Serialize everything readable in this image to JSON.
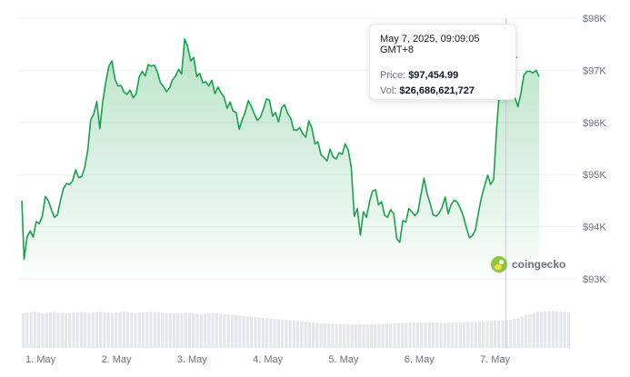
{
  "chart_data": {
    "type": "area",
    "title": "",
    "xlabel": "",
    "ylabel": "",
    "y_ticks": [
      "$98K",
      "$97K",
      "$96K",
      "$95K",
      "$94K",
      "$93K"
    ],
    "y_tick_values": [
      98000,
      97000,
      96000,
      95000,
      94000,
      93000
    ],
    "ylim": [
      93000,
      98000
    ],
    "x_ticks": [
      "1. May",
      "2. May",
      "3. May",
      "4. May",
      "5. May",
      "6. May",
      "7. May"
    ],
    "x_tick_values": [
      0,
      1,
      2,
      3,
      4,
      5,
      6
    ],
    "xlim": [
      -0.05,
      7.2
    ],
    "grid": true,
    "legend": "none",
    "colors": {
      "line": "#16a34a",
      "fill": "#16a34a",
      "volume": "#e5e7eb",
      "crosshair": "#c8ccd2"
    },
    "series": [
      {
        "values": [
          [
            -0.05,
            94500
          ],
          [
            -0.02,
            93380
          ],
          [
            0.02,
            93800
          ],
          [
            0.06,
            93920
          ],
          [
            0.1,
            93800
          ],
          [
            0.14,
            94100
          ],
          [
            0.18,
            94060
          ],
          [
            0.22,
            94200
          ],
          [
            0.26,
            94580
          ],
          [
            0.3,
            94500
          ],
          [
            0.34,
            94330
          ],
          [
            0.38,
            94180
          ],
          [
            0.42,
            94230
          ],
          [
            0.46,
            94500
          ],
          [
            0.5,
            94730
          ],
          [
            0.54,
            94830
          ],
          [
            0.58,
            94810
          ],
          [
            0.62,
            94880
          ],
          [
            0.66,
            95090
          ],
          [
            0.7,
            94940
          ],
          [
            0.74,
            94960
          ],
          [
            0.78,
            95130
          ],
          [
            0.82,
            95460
          ],
          [
            0.86,
            96050
          ],
          [
            0.9,
            96160
          ],
          [
            0.94,
            96400
          ],
          [
            0.98,
            95880
          ],
          [
            1.02,
            96410
          ],
          [
            1.06,
            96790
          ],
          [
            1.1,
            97080
          ],
          [
            1.14,
            97180
          ],
          [
            1.18,
            96830
          ],
          [
            1.22,
            96700
          ],
          [
            1.26,
            96710
          ],
          [
            1.3,
            96580
          ],
          [
            1.34,
            96540
          ],
          [
            1.38,
            96620
          ],
          [
            1.42,
            96470
          ],
          [
            1.46,
            96550
          ],
          [
            1.5,
            96870
          ],
          [
            1.54,
            96980
          ],
          [
            1.58,
            96890
          ],
          [
            1.62,
            97110
          ],
          [
            1.66,
            97080
          ],
          [
            1.7,
            97100
          ],
          [
            1.74,
            96970
          ],
          [
            1.78,
            96760
          ],
          [
            1.82,
            96690
          ],
          [
            1.86,
            96590
          ],
          [
            1.9,
            96660
          ],
          [
            1.94,
            96820
          ],
          [
            1.98,
            96890
          ],
          [
            2.02,
            97020
          ],
          [
            2.06,
            96930
          ],
          [
            2.1,
            97600
          ],
          [
            2.14,
            97460
          ],
          [
            2.18,
            97180
          ],
          [
            2.22,
            97250
          ],
          [
            2.26,
            96880
          ],
          [
            2.3,
            96940
          ],
          [
            2.34,
            96760
          ],
          [
            2.38,
            96780
          ],
          [
            2.42,
            96700
          ],
          [
            2.46,
            96810
          ],
          [
            2.5,
            96550
          ],
          [
            2.54,
            96680
          ],
          [
            2.58,
            96570
          ],
          [
            2.62,
            96490
          ],
          [
            2.66,
            96270
          ],
          [
            2.7,
            96390
          ],
          [
            2.74,
            96220
          ],
          [
            2.78,
            96190
          ],
          [
            2.82,
            95870
          ],
          [
            2.86,
            96050
          ],
          [
            2.9,
            96200
          ],
          [
            2.94,
            96420
          ],
          [
            2.98,
            96310
          ],
          [
            3.02,
            96160
          ],
          [
            3.06,
            96040
          ],
          [
            3.1,
            96100
          ],
          [
            3.14,
            96260
          ],
          [
            3.18,
            96450
          ],
          [
            3.22,
            96430
          ],
          [
            3.26,
            96120
          ],
          [
            3.3,
            96190
          ],
          [
            3.34,
            96010
          ],
          [
            3.38,
            96280
          ],
          [
            3.42,
            96340
          ],
          [
            3.46,
            96170
          ],
          [
            3.5,
            96080
          ],
          [
            3.54,
            95860
          ],
          [
            3.58,
            95850
          ],
          [
            3.62,
            95900
          ],
          [
            3.66,
            95780
          ],
          [
            3.7,
            95720
          ],
          [
            3.74,
            96030
          ],
          [
            3.78,
            95890
          ],
          [
            3.82,
            95590
          ],
          [
            3.86,
            95630
          ],
          [
            3.9,
            95380
          ],
          [
            3.94,
            95330
          ],
          [
            3.98,
            95260
          ],
          [
            4.02,
            95490
          ],
          [
            4.06,
            95340
          ],
          [
            4.1,
            95300
          ],
          [
            4.14,
            95420
          ],
          [
            4.18,
            95390
          ],
          [
            4.22,
            95590
          ],
          [
            4.26,
            95470
          ],
          [
            4.3,
            95140
          ],
          [
            4.34,
            94200
          ],
          [
            4.38,
            94350
          ],
          [
            4.42,
            93840
          ],
          [
            4.46,
            94290
          ],
          [
            4.5,
            94180
          ],
          [
            4.54,
            94470
          ],
          [
            4.58,
            94680
          ],
          [
            4.62,
            94710
          ],
          [
            4.66,
            94420
          ],
          [
            4.7,
            94480
          ],
          [
            4.74,
            94220
          ],
          [
            4.78,
            94180
          ],
          [
            4.82,
            94330
          ],
          [
            4.86,
            94250
          ],
          [
            4.9,
            93770
          ],
          [
            4.94,
            93700
          ],
          [
            4.98,
            94120
          ],
          [
            5.02,
            94090
          ],
          [
            5.06,
            94350
          ],
          [
            5.1,
            94290
          ],
          [
            5.14,
            94210
          ],
          [
            5.18,
            94280
          ],
          [
            5.22,
            94610
          ],
          [
            5.26,
            94930
          ],
          [
            5.3,
            94640
          ],
          [
            5.34,
            94460
          ],
          [
            5.38,
            94230
          ],
          [
            5.42,
            94200
          ],
          [
            5.46,
            94260
          ],
          [
            5.5,
            94380
          ],
          [
            5.54,
            94570
          ],
          [
            5.58,
            94250
          ],
          [
            5.62,
            94430
          ],
          [
            5.66,
            94510
          ],
          [
            5.7,
            94470
          ],
          [
            5.74,
            94350
          ],
          [
            5.78,
            94200
          ],
          [
            5.82,
            93980
          ],
          [
            5.86,
            93790
          ],
          [
            5.9,
            93830
          ],
          [
            5.94,
            93940
          ],
          [
            5.98,
            94280
          ],
          [
            6.02,
            94570
          ],
          [
            6.06,
            94780
          ],
          [
            6.1,
            94990
          ],
          [
            6.14,
            94810
          ],
          [
            6.18,
            94910
          ],
          [
            6.22,
            95910
          ],
          [
            6.26,
            96670
          ],
          [
            6.3,
            97100
          ],
          [
            6.34,
            97450
          ],
          [
            6.38,
            97010
          ],
          [
            6.42,
            96500
          ],
          [
            6.46,
            96480
          ],
          [
            6.5,
            96300
          ],
          [
            6.54,
            96560
          ],
          [
            6.58,
            96910
          ],
          [
            6.62,
            96980
          ],
          [
            6.66,
            96980
          ],
          [
            6.7,
            96950
          ],
          [
            6.74,
            97000
          ],
          [
            6.78,
            96880
          ]
        ]
      }
    ],
    "volume": [
      0.95,
      0.97,
      0.99,
      1.0,
      0.98,
      0.96,
      0.97,
      0.98,
      0.99,
      0.97,
      0.96,
      0.95,
      0.96,
      0.97,
      0.98,
      0.99,
      0.98,
      0.97,
      0.98,
      0.99,
      1.0,
      0.98,
      0.97,
      0.96,
      0.97,
      0.98,
      0.99,
      0.98,
      0.97,
      0.96,
      0.97,
      0.98,
      0.99,
      1.0,
      0.99,
      0.98,
      0.97,
      0.96,
      0.95,
      0.94,
      0.95,
      0.96,
      0.97,
      0.96,
      0.95,
      0.94,
      0.93,
      0.94,
      0.95,
      0.96,
      0.95,
      0.94,
      0.93,
      0.92,
      0.91,
      0.9,
      0.89,
      0.88,
      0.87,
      0.86,
      0.85,
      0.84,
      0.83,
      0.82,
      0.81,
      0.8,
      0.79,
      0.78,
      0.77,
      0.76,
      0.75,
      0.74,
      0.73,
      0.72,
      0.71,
      0.7,
      0.69,
      0.68,
      0.68,
      0.67,
      0.67,
      0.66,
      0.66,
      0.66,
      0.65,
      0.65,
      0.65,
      0.65,
      0.65,
      0.65,
      0.65,
      0.65,
      0.66,
      0.66,
      0.67,
      0.67,
      0.68,
      0.68,
      0.69,
      0.69,
      0.7,
      0.7,
      0.7,
      0.7,
      0.7,
      0.7,
      0.7,
      0.7,
      0.69,
      0.69,
      0.7,
      0.7,
      0.7,
      0.71,
      0.71,
      0.72,
      0.72,
      0.72,
      0.73,
      0.73,
      0.74,
      0.74,
      0.75,
      0.75,
      0.76,
      0.77,
      0.78,
      0.8,
      0.82,
      0.86,
      0.9,
      0.94,
      0.97,
      0.99,
      1.0,
      1.01,
      1.02,
      1.02,
      1.01,
      1.0,
      0.99,
      0.98
    ],
    "tooltip": {
      "date": "May 7, 2025, 09:09:05 GMT+8",
      "price_label": "Price:",
      "price_value": "$97,454.99",
      "vol_label": "Vol:",
      "vol_value": "$26,686,621,727"
    },
    "hover_point": {
      "x": 6.34,
      "y": 97450
    },
    "watermark": "coingecko"
  }
}
